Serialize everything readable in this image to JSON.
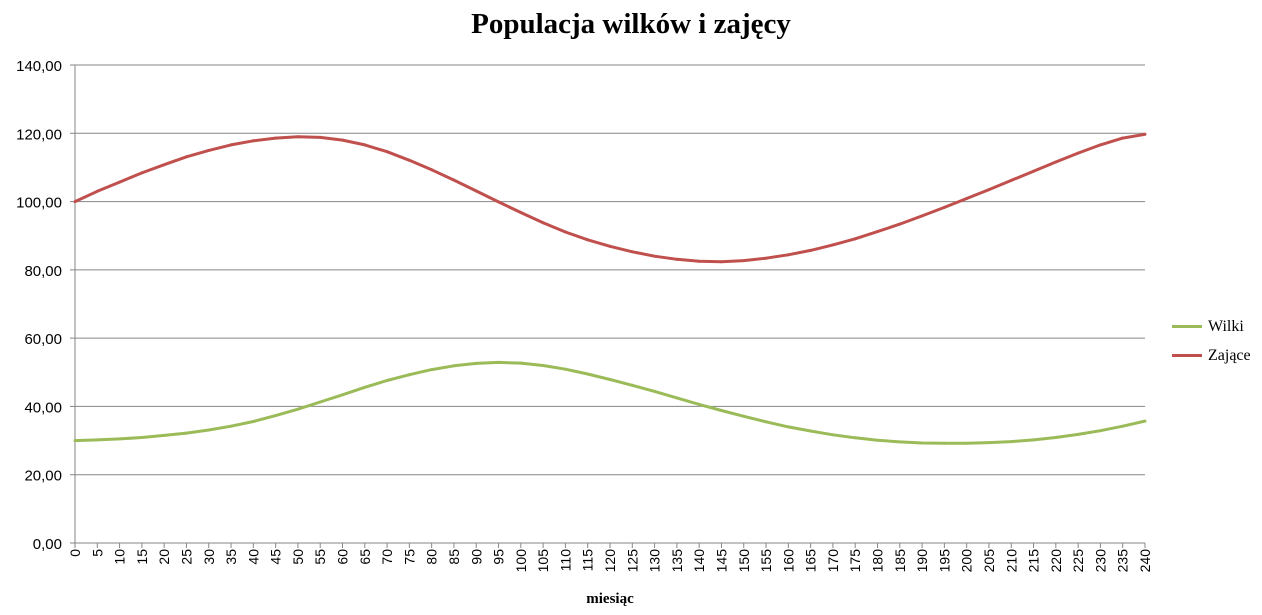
{
  "chart_data": {
    "type": "line",
    "title": "Populacja wilków i zajęcy",
    "xlabel": "miesiąc",
    "ylabel": "",
    "xlim": [
      0,
      240
    ],
    "ylim": [
      0,
      140
    ],
    "x_ticks": [
      0,
      5,
      10,
      15,
      20,
      25,
      30,
      35,
      40,
      45,
      50,
      55,
      60,
      65,
      70,
      75,
      80,
      85,
      90,
      95,
      100,
      105,
      110,
      115,
      120,
      125,
      130,
      135,
      140,
      145,
      150,
      155,
      160,
      165,
      170,
      175,
      180,
      185,
      190,
      195,
      200,
      205,
      210,
      215,
      220,
      225,
      230,
      235,
      240
    ],
    "y_ticks": [
      "0,00",
      "20,00",
      "40,00",
      "60,00",
      "80,00",
      "100,00",
      "120,00",
      "140,00"
    ],
    "y_tick_values": [
      0,
      20,
      40,
      60,
      80,
      100,
      120,
      140
    ],
    "grid": "horizontal",
    "legend_position": "right",
    "x": [
      0,
      5,
      10,
      15,
      20,
      25,
      30,
      35,
      40,
      45,
      50,
      55,
      60,
      65,
      70,
      75,
      80,
      85,
      90,
      95,
      100,
      105,
      110,
      115,
      120,
      125,
      130,
      135,
      140,
      145,
      150,
      155,
      160,
      165,
      170,
      175,
      180,
      185,
      190,
      195,
      200,
      205,
      210,
      215,
      220,
      225,
      230,
      235,
      240
    ],
    "series": [
      {
        "name": "Wilki",
        "color": "#9BBB59",
        "values": [
          30.0,
          30.2,
          30.5,
          30.9,
          31.5,
          32.2,
          33.1,
          34.2,
          35.6,
          37.3,
          39.2,
          41.3,
          43.4,
          45.6,
          47.6,
          49.3,
          50.8,
          51.9,
          52.6,
          52.9,
          52.7,
          52.0,
          50.9,
          49.5,
          47.9,
          46.2,
          44.4,
          42.5,
          40.6,
          38.8,
          37.1,
          35.5,
          34.0,
          32.8,
          31.7,
          30.8,
          30.1,
          29.6,
          29.3,
          29.2,
          29.2,
          29.4,
          29.7,
          30.2,
          30.9,
          31.8,
          32.9,
          34.2,
          35.7
        ]
      },
      {
        "name": "Zające",
        "color": "#C0504D",
        "values": [
          100.0,
          103.0,
          105.7,
          108.4,
          110.8,
          113.1,
          115.0,
          116.6,
          117.8,
          118.6,
          119.0,
          118.8,
          118.0,
          116.6,
          114.6,
          112.1,
          109.3,
          106.3,
          103.1,
          99.9,
          96.8,
          93.8,
          91.1,
          88.8,
          86.9,
          85.3,
          84.0,
          83.1,
          82.5,
          82.4,
          82.7,
          83.4,
          84.4,
          85.7,
          87.3,
          89.1,
          91.2,
          93.4,
          95.8,
          98.3,
          100.9,
          103.5,
          106.2,
          108.9,
          111.6,
          114.2,
          116.6,
          118.6,
          119.7
        ]
      }
    ]
  }
}
